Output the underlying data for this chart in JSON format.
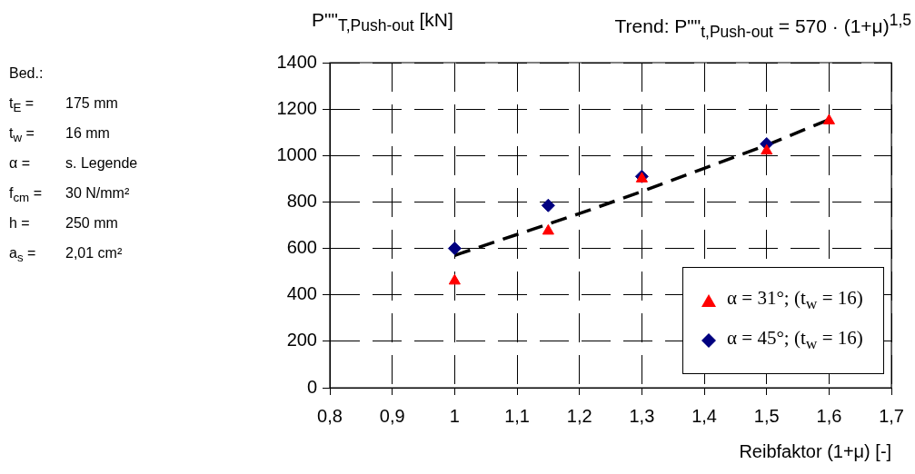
{
  "chart_data": {
    "type": "scatter",
    "ylabel": "P\"\"$_{T,Push-out}$ [kN]",
    "xlabel": "Reibfaktor (1+μ)  [-]",
    "annotations": [
      "Trend: P\"\"$_{t,Push-out}$ = 570 · (1+μ)$^{1,5}$",
      "Bed.:",
      "t$_{E}$ = 175 mm",
      "t$_{w}$ = 16 mm",
      "α = s. Legende",
      "f$_{cm}$ = 30 N/mm²",
      "h = 250 mm",
      "a$_{s}$ = 2,01 cm²"
    ],
    "xlim": [
      0.8,
      1.7
    ],
    "xticks": [
      {
        "value": 0.8,
        "label": "0,8"
      },
      {
        "value": 0.9,
        "label": "0,9"
      },
      1,
      {
        "value": 1.1,
        "label": "1,1"
      },
      {
        "value": 1.2,
        "label": "1,2"
      },
      {
        "value": 1.3,
        "label": "1,3"
      },
      {
        "value": 1.4,
        "label": "1,4"
      },
      {
        "value": 1.5,
        "label": "1,5"
      },
      {
        "value": 1.6,
        "label": "1,6"
      },
      {
        "value": 1.7,
        "label": "1,7"
      }
    ],
    "ylim": [
      0,
      1400
    ],
    "yticks": [
      0,
      200,
      400,
      600,
      800,
      1000,
      1200,
      1400
    ],
    "grid": true,
    "legend": "bottom right",
    "series": [
      {
        "name": "α = 31°; (t$_{w}$ = 16)",
        "color": "#ff0000",
        "marker": "triangle",
        "x": [
          1,
          1.15,
          1.3,
          1.5,
          1.6
        ],
        "values": [
          460,
          675,
          900,
          1020,
          1150
        ]
      },
      {
        "name": "α = 45°; (t$_{w}$ = 16)",
        "color": "#000080",
        "marker": "diamond",
        "x": [
          1,
          1.15,
          1.3,
          1.5
        ],
        "values": [
          600,
          785,
          910,
          1050
        ]
      },
      {
        "type": "line",
        "color": "#000000",
        "marker": "none",
        "line_style": "dashed",
        "x": [
          1,
          1.1,
          1.2,
          1.3,
          1.4,
          1.5,
          1.6
        ],
        "values": [
          570,
          660,
          750,
          845,
          945,
          1045,
          1155
        ]
      }
    ]
  }
}
